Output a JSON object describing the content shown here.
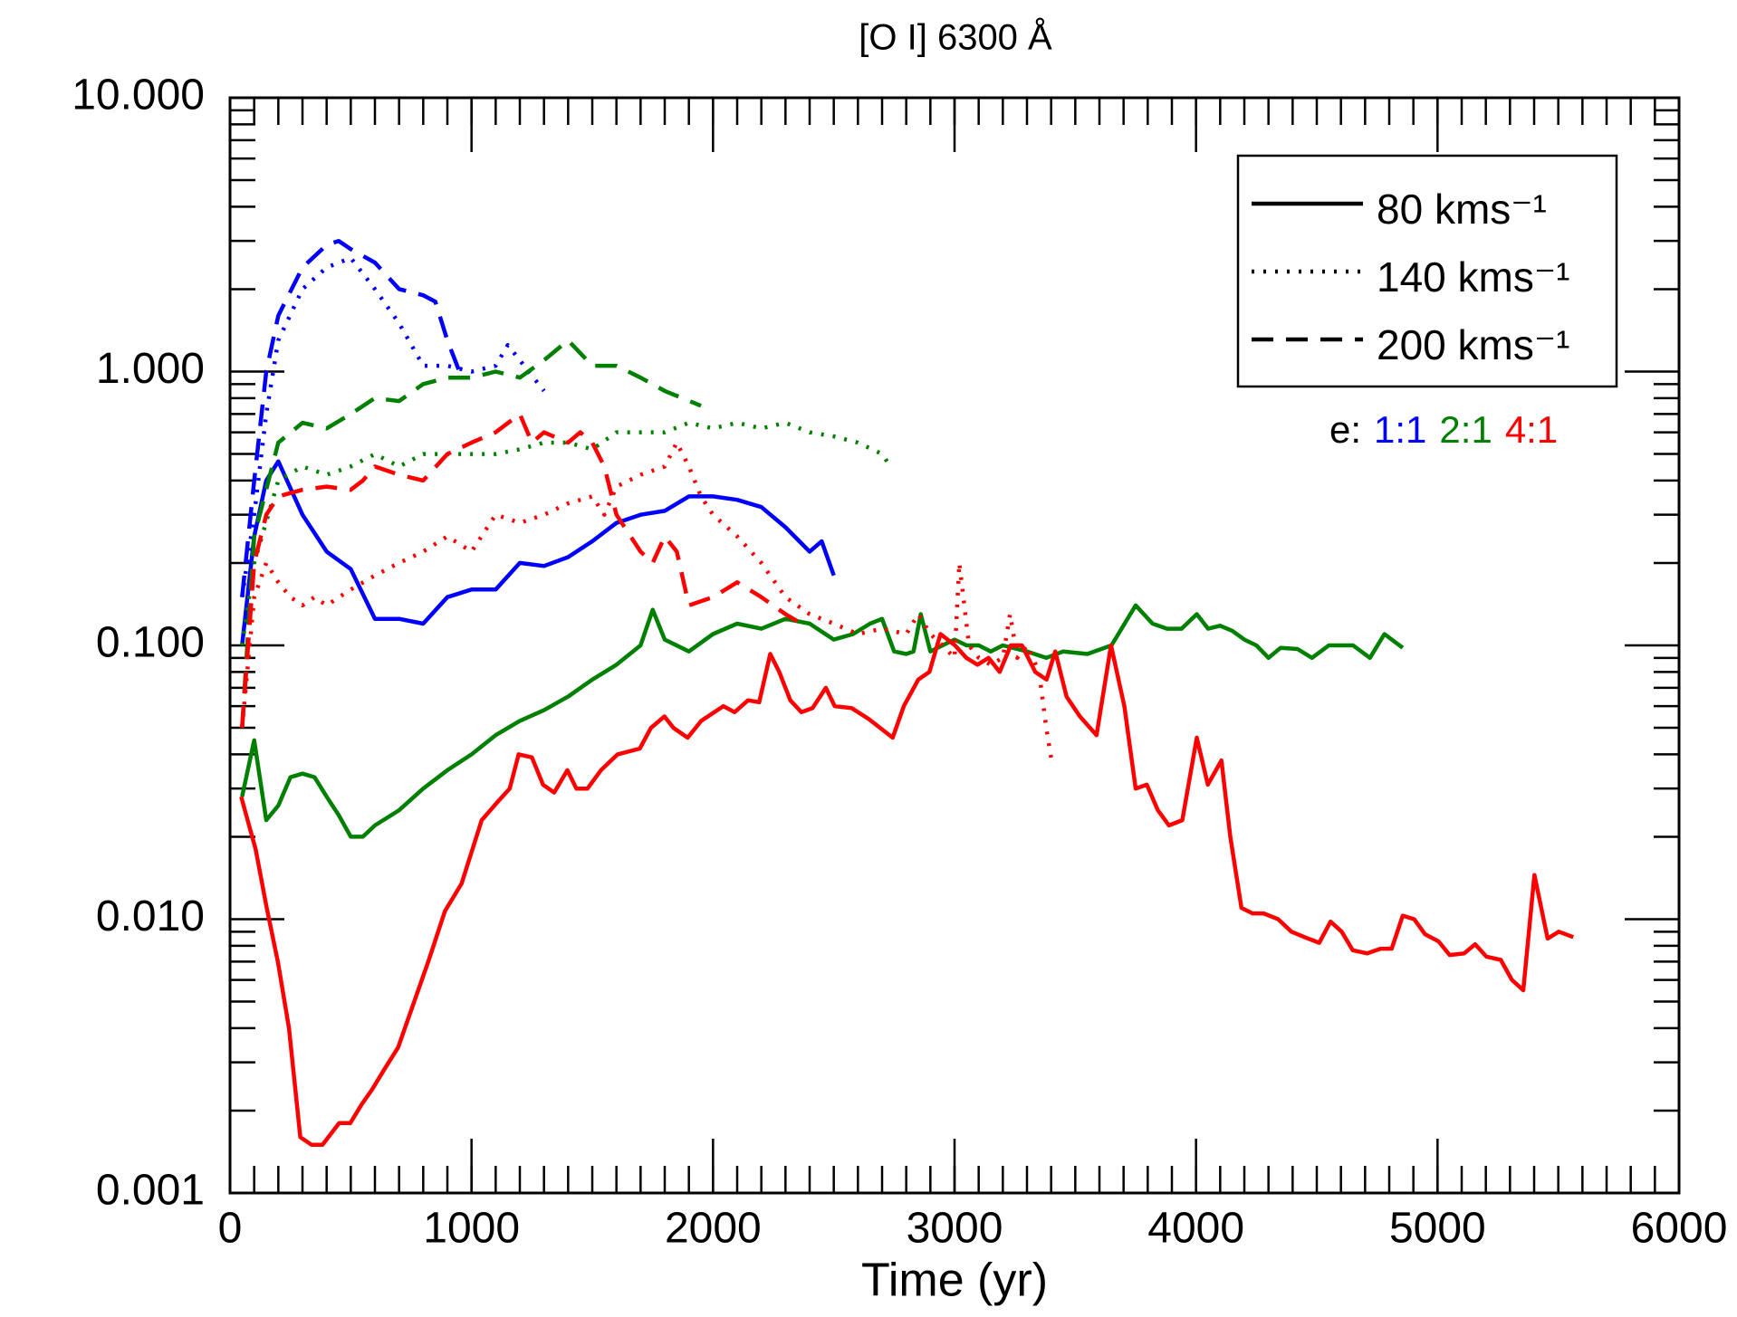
{
  "chart_data": {
    "type": "line",
    "title": "[O I] 6300 Å",
    "x_label": "Time (yr)",
    "xlim": [
      0,
      6000
    ],
    "xticks": [
      0,
      1000,
      2000,
      3000,
      4000,
      5000,
      6000
    ],
    "ylim": [
      0.001,
      10
    ],
    "log_y": true,
    "yticks": [
      {
        "value": 0.001,
        "label": "0.001"
      },
      {
        "value": 0.01,
        "label": "0.010"
      },
      {
        "value": 0.1,
        "label": "0.100"
      },
      {
        "value": 1,
        "label": "1.000"
      },
      {
        "value": 10,
        "label": "10.000"
      }
    ],
    "legend": [
      {
        "name": "80 kms⁻¹",
        "dash": "solid"
      },
      {
        "name": "140 kms⁻¹",
        "dash": "dotted"
      },
      {
        "name": "200 kms⁻¹",
        "dash": "dashed"
      }
    ],
    "ratio_label": "e:",
    "ratios": [
      {
        "text": "1:1",
        "color": "#0000ff"
      },
      {
        "text": "2:1",
        "color": "#008000"
      },
      {
        "text": "4:1",
        "color": "#ff0000"
      }
    ],
    "series": [
      {
        "color": "#0000ff",
        "dash": "solid",
        "x": [
          50,
          100,
          150,
          200,
          300,
          400,
          500,
          600,
          700,
          800,
          900,
          1000,
          1100,
          1200,
          1300,
          1400,
          1500,
          1600,
          1700,
          1800,
          1900,
          2000,
          2100,
          2200,
          2300,
          2400,
          2450,
          2500
        ],
        "values": [
          0.1,
          0.25,
          0.4,
          0.47,
          0.3,
          0.22,
          0.19,
          0.125,
          0.125,
          0.12,
          0.15,
          0.16,
          0.16,
          0.2,
          0.195,
          0.21,
          0.24,
          0.28,
          0.3,
          0.31,
          0.35,
          0.35,
          0.34,
          0.32,
          0.27,
          0.22,
          0.24,
          0.18
        ]
      },
      {
        "color": "#0000ff",
        "dash": "dotted",
        "x": [
          50,
          100,
          150,
          200,
          300,
          400,
          500,
          600,
          700,
          800,
          900,
          1000,
          1100,
          1150,
          1200,
          1300
        ],
        "values": [
          0.15,
          0.3,
          0.7,
          1.3,
          2.0,
          2.4,
          2.6,
          2.0,
          1.5,
          1.05,
          1.05,
          1.0,
          1.05,
          1.25,
          1.1,
          0.85
        ]
      },
      {
        "color": "#0000ff",
        "dash": "dashed",
        "x": [
          50,
          100,
          150,
          200,
          300,
          400,
          450,
          500,
          600,
          700,
          800,
          850,
          900,
          950
        ],
        "values": [
          0.15,
          0.4,
          1.0,
          1.6,
          2.4,
          2.9,
          3.0,
          2.8,
          2.5,
          2.0,
          1.9,
          1.8,
          1.3,
          1.0
        ]
      },
      {
        "color": "#008000",
        "dash": "solid",
        "x": [
          50,
          100,
          150,
          200,
          250,
          300,
          350,
          400,
          450,
          500,
          550,
          600,
          700,
          800,
          900,
          1000,
          1100,
          1200,
          1300,
          1400,
          1500,
          1600,
          1700,
          1750,
          1800,
          1900,
          2000,
          2100,
          2200,
          2300,
          2400,
          2500,
          2580,
          2650,
          2700,
          2750,
          2800,
          2830,
          2860,
          2900,
          2950,
          3000,
          3050,
          3100,
          3150,
          3200,
          3300,
          3380,
          3450,
          3550,
          3650,
          3750,
          3820,
          3880,
          3940,
          4003,
          4050,
          4100,
          4150,
          4200,
          4250,
          4300,
          4350,
          4420,
          4480,
          4550,
          4650,
          4720,
          4780,
          4856
        ],
        "values": [
          0.028,
          0.045,
          0.023,
          0.026,
          0.033,
          0.034,
          0.033,
          0.028,
          0.024,
          0.02,
          0.02,
          0.022,
          0.025,
          0.03,
          0.035,
          0.04,
          0.047,
          0.053,
          0.058,
          0.065,
          0.075,
          0.085,
          0.1,
          0.135,
          0.105,
          0.095,
          0.11,
          0.12,
          0.115,
          0.125,
          0.12,
          0.105,
          0.11,
          0.12,
          0.125,
          0.095,
          0.093,
          0.095,
          0.13,
          0.095,
          0.1,
          0.105,
          0.1,
          0.1,
          0.095,
          0.1,
          0.095,
          0.09,
          0.095,
          0.093,
          0.1,
          0.14,
          0.12,
          0.115,
          0.115,
          0.13,
          0.115,
          0.118,
          0.113,
          0.105,
          0.1,
          0.09,
          0.098,
          0.097,
          0.09,
          0.1,
          0.1,
          0.09,
          0.11,
          0.098
        ]
      },
      {
        "color": "#008000",
        "dash": "dotted",
        "x": [
          50,
          100,
          200,
          300,
          400,
          500,
          600,
          700,
          800,
          900,
          1000,
          1100,
          1200,
          1300,
          1400,
          1500,
          1600,
          1700,
          1800,
          1900,
          2000,
          2100,
          2200,
          2300,
          2400,
          2500,
          2600,
          2700,
          2735
        ],
        "values": [
          0.1,
          0.2,
          0.4,
          0.45,
          0.42,
          0.45,
          0.5,
          0.45,
          0.5,
          0.5,
          0.5,
          0.5,
          0.52,
          0.55,
          0.55,
          0.52,
          0.6,
          0.6,
          0.6,
          0.65,
          0.62,
          0.65,
          0.62,
          0.65,
          0.6,
          0.58,
          0.55,
          0.5,
          0.45
        ]
      },
      {
        "color": "#008000",
        "dash": "dashed",
        "x": [
          50,
          100,
          200,
          300,
          400,
          500,
          600,
          700,
          800,
          900,
          1000,
          1100,
          1200,
          1300,
          1400,
          1500,
          1600,
          1700,
          1800,
          1950
        ],
        "values": [
          0.05,
          0.25,
          0.55,
          0.65,
          0.62,
          0.7,
          0.8,
          0.78,
          0.9,
          0.95,
          0.95,
          1.0,
          0.95,
          1.1,
          1.3,
          1.05,
          1.05,
          0.95,
          0.85,
          0.75
        ]
      },
      {
        "color": "#ff0000",
        "dash": "solid",
        "x": [
          46,
          106,
          152,
          198,
          244,
          291,
          337,
          383,
          452,
          498,
          544,
          590,
          636,
          696,
          752,
          821,
          890,
          959,
          1042,
          1111,
          1158,
          1195,
          1250,
          1296,
          1342,
          1397,
          1434,
          1480,
          1536,
          1605,
          1697,
          1743,
          1799,
          1836,
          1895,
          1951,
          2043,
          2089,
          2145,
          2191,
          2237,
          2274,
          2320,
          2366,
          2412,
          2467,
          2504,
          2574,
          2643,
          2744,
          2790,
          2850,
          2896,
          2942,
          3002,
          3049,
          3095,
          3141,
          3187,
          3233,
          3279,
          3334,
          3381,
          3417,
          3464,
          3519,
          3588,
          3648,
          3703,
          3750,
          3796,
          3842,
          3888,
          3943,
          4003,
          4049,
          4105,
          4142,
          4188,
          4234,
          4280,
          4340,
          4395,
          4464,
          4510,
          4557,
          4603,
          4649,
          4709,
          4764,
          4810,
          4856,
          4903,
          4949,
          5004,
          5050,
          5110,
          5156,
          5202,
          5262,
          5308,
          5355,
          5401,
          5456,
          5502,
          5562
        ],
        "values": [
          0.028,
          0.018,
          0.011,
          0.007,
          0.004,
          0.0016,
          0.0015,
          0.0015,
          0.0018,
          0.0018,
          0.0021,
          0.0024,
          0.0028,
          0.0034,
          0.0047,
          0.007,
          0.0107,
          0.0135,
          0.023,
          0.027,
          0.03,
          0.04,
          0.039,
          0.031,
          0.029,
          0.035,
          0.03,
          0.03,
          0.035,
          0.04,
          0.042,
          0.05,
          0.055,
          0.05,
          0.046,
          0.053,
          0.06,
          0.057,
          0.063,
          0.062,
          0.093,
          0.08,
          0.063,
          0.057,
          0.059,
          0.07,
          0.06,
          0.059,
          0.054,
          0.046,
          0.06,
          0.075,
          0.08,
          0.11,
          0.1,
          0.09,
          0.085,
          0.09,
          0.08,
          0.1,
          0.1,
          0.08,
          0.075,
          0.095,
          0.065,
          0.055,
          0.047,
          0.1,
          0.06,
          0.03,
          0.031,
          0.025,
          0.022,
          0.023,
          0.046,
          0.031,
          0.038,
          0.02,
          0.011,
          0.0105,
          0.0105,
          0.01,
          0.009,
          0.0085,
          0.0082,
          0.0098,
          0.009,
          0.0077,
          0.0075,
          0.0078,
          0.0078,
          0.0103,
          0.01,
          0.0088,
          0.0083,
          0.0074,
          0.0075,
          0.0081,
          0.0073,
          0.0071,
          0.006,
          0.0055,
          0.0145,
          0.0085,
          0.009,
          0.0086
        ]
      },
      {
        "color": "#ff0000",
        "dash": "dotted",
        "x": [
          50,
          100,
          150,
          200,
          250,
          300,
          350,
          400,
          500,
          600,
          700,
          800,
          900,
          1000,
          1100,
          1200,
          1300,
          1400,
          1500,
          1550,
          1600,
          1700,
          1800,
          1850,
          1900,
          1950,
          2000,
          2100,
          2200,
          2300,
          2400,
          2500,
          2600,
          2700,
          2800,
          2850,
          2900,
          2950,
          3000,
          3020,
          3060,
          3100,
          3150,
          3200,
          3230,
          3260,
          3300,
          3350,
          3380,
          3404
        ],
        "values": [
          0.05,
          0.15,
          0.2,
          0.17,
          0.15,
          0.14,
          0.15,
          0.14,
          0.16,
          0.18,
          0.2,
          0.22,
          0.25,
          0.22,
          0.3,
          0.28,
          0.3,
          0.33,
          0.35,
          0.3,
          0.38,
          0.42,
          0.45,
          0.55,
          0.45,
          0.35,
          0.3,
          0.25,
          0.2,
          0.15,
          0.13,
          0.12,
          0.11,
          0.115,
          0.11,
          0.13,
          0.11,
          0.1,
          0.09,
          0.2,
          0.1,
          0.09,
          0.085,
          0.09,
          0.13,
          0.09,
          0.1,
          0.08,
          0.05,
          0.037
        ]
      },
      {
        "color": "#ff0000",
        "dash": "dashed",
        "x": [
          50,
          100,
          150,
          200,
          300,
          400,
          500,
          550,
          600,
          700,
          800,
          900,
          1000,
          1100,
          1200,
          1250,
          1300,
          1400,
          1450,
          1500,
          1550,
          1600,
          1700,
          1750,
          1800,
          1850,
          1900,
          2000,
          2100,
          2200,
          2300,
          2366
        ],
        "values": [
          0.05,
          0.2,
          0.3,
          0.35,
          0.37,
          0.38,
          0.37,
          0.4,
          0.45,
          0.42,
          0.4,
          0.5,
          0.55,
          0.6,
          0.7,
          0.55,
          0.6,
          0.55,
          0.6,
          0.55,
          0.45,
          0.3,
          0.22,
          0.2,
          0.25,
          0.22,
          0.14,
          0.15,
          0.17,
          0.15,
          0.13,
          0.12
        ]
      }
    ]
  }
}
